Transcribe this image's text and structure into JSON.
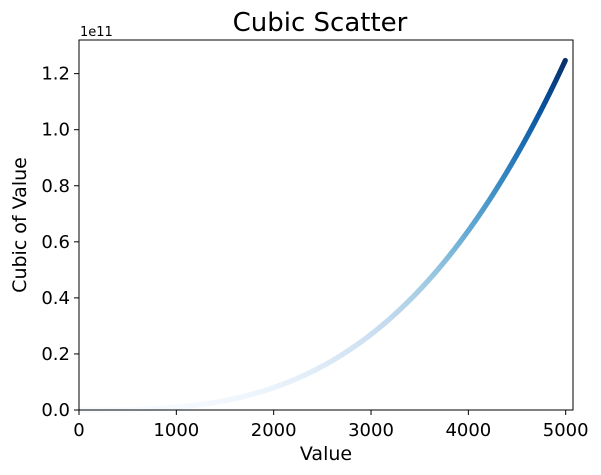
{
  "chart_data": {
    "type": "scatter",
    "title": "Cubic Scatter",
    "xlabel": "Value",
    "ylabel": "Cubic of Value",
    "y_offset_label": "1e11",
    "xlim": [
      0,
      5075
    ],
    "ylim": [
      0,
      1.32
    ],
    "y_unit_multiplier": 100000000000.0,
    "x_ticks": [
      0,
      1000,
      2000,
      3000,
      4000,
      5000
    ],
    "x_tick_labels": [
      "0",
      "1000",
      "2000",
      "3000",
      "4000",
      "5000"
    ],
    "y_ticks": [
      0,
      0.2,
      0.4,
      0.6,
      0.8,
      1.0,
      1.2
    ],
    "y_tick_labels": [
      "0.0",
      "0.2",
      "0.4",
      "0.6",
      "0.8",
      "1.0",
      "1.2"
    ],
    "x": {
      "start": 1,
      "end": 5000,
      "step": 1
    },
    "y_formula": "x^3",
    "colormap": "Blues",
    "color_by": "y",
    "grid": false,
    "legend": "none"
  }
}
